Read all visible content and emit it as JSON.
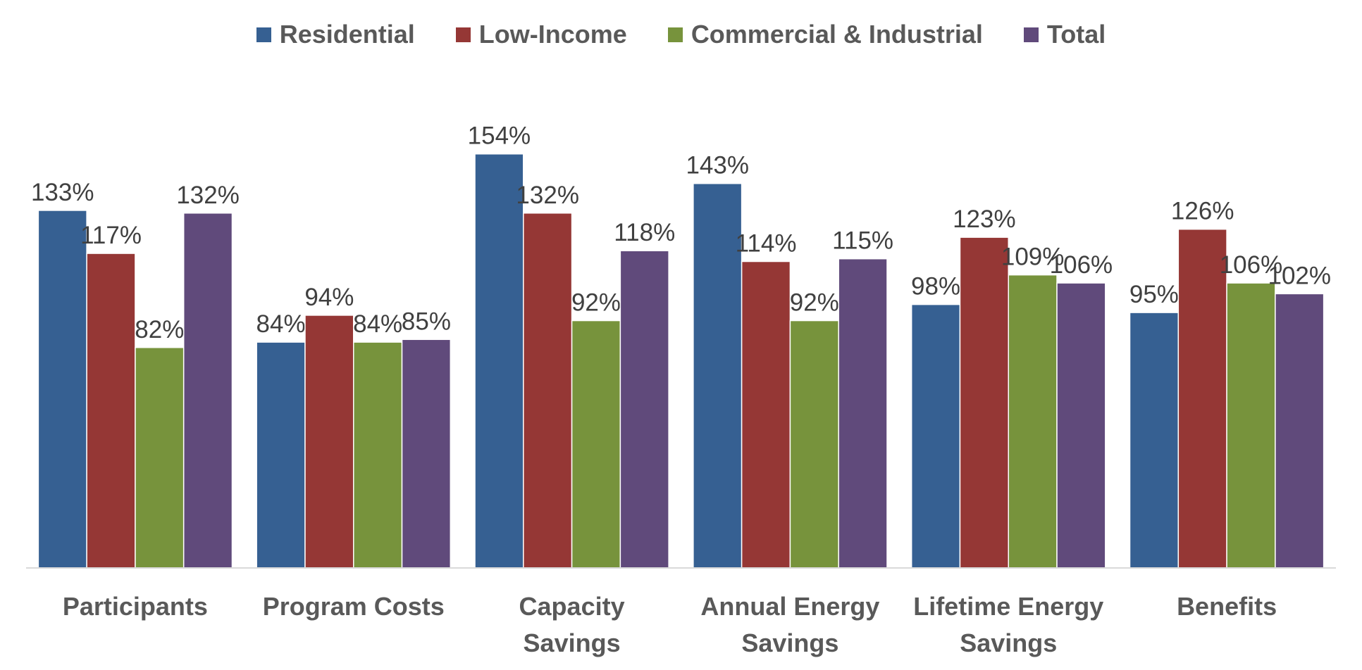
{
  "chart_data": {
    "type": "bar",
    "categories": [
      "Participants",
      "Program Costs",
      "Capacity Savings",
      "Annual Energy Savings",
      "Lifetime Energy Savings",
      "Benefits"
    ],
    "series": [
      {
        "name": "Residential",
        "color": "#366092",
        "values": [
          133,
          84,
          154,
          143,
          98,
          95
        ],
        "value_labels": [
          "133%",
          "84%",
          "154%",
          "143%",
          "98%",
          "95%"
        ]
      },
      {
        "name": "Low-Income",
        "color": "#953735",
        "values": [
          117,
          94,
          132,
          114,
          123,
          126
        ],
        "value_labels": [
          "117%",
          "94%",
          "132%",
          "114%",
          "123%",
          "126%"
        ]
      },
      {
        "name": "Commercial & Industrial",
        "color": "#77933c",
        "values": [
          82,
          84,
          92,
          92,
          109,
          106
        ],
        "value_labels": [
          "82%",
          "84%",
          "92%",
          "92%",
          "109%",
          "106%"
        ]
      },
      {
        "name": "Total",
        "color": "#604a7b",
        "values": [
          132,
          85,
          118,
          115,
          106,
          102
        ],
        "value_labels": [
          "132%",
          "85%",
          "118%",
          "115%",
          "106%",
          "102%"
        ]
      }
    ],
    "ylim": [
      0,
      200
    ],
    "legend": "top"
  }
}
